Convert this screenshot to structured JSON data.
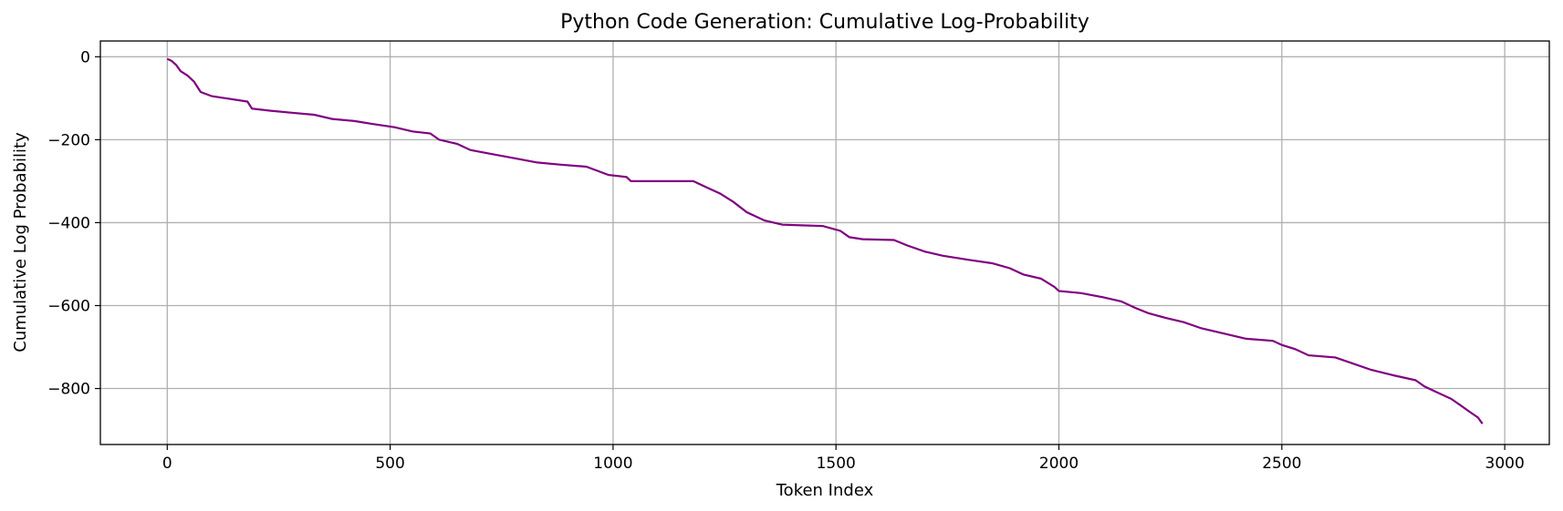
{
  "chart_data": {
    "type": "line",
    "title": "Python Code Generation: Cumulative Log-Probability",
    "xlabel": "Token Index",
    "ylabel": "Cumulative Log Probability",
    "xlim": [
      -150,
      3100
    ],
    "ylim": [
      -935,
      38
    ],
    "xticks": [
      0,
      500,
      1000,
      1500,
      2000,
      2500,
      3000
    ],
    "yticks": [
      0,
      -200,
      -400,
      -600,
      -800
    ],
    "grid": true,
    "line_color": "#800080",
    "series": [
      {
        "points": [
          [
            0,
            -5
          ],
          [
            10,
            -10
          ],
          [
            20,
            -20
          ],
          [
            30,
            -35
          ],
          [
            45,
            -45
          ],
          [
            60,
            -60
          ],
          [
            75,
            -85
          ],
          [
            100,
            -95
          ],
          [
            130,
            -100
          ],
          [
            180,
            -108
          ],
          [
            190,
            -125
          ],
          [
            230,
            -130
          ],
          [
            280,
            -135
          ],
          [
            330,
            -140
          ],
          [
            370,
            -150
          ],
          [
            420,
            -155
          ],
          [
            460,
            -162
          ],
          [
            510,
            -170
          ],
          [
            550,
            -180
          ],
          [
            590,
            -185
          ],
          [
            610,
            -200
          ],
          [
            650,
            -210
          ],
          [
            680,
            -225
          ],
          [
            730,
            -235
          ],
          [
            780,
            -245
          ],
          [
            830,
            -255
          ],
          [
            880,
            -260
          ],
          [
            940,
            -265
          ],
          [
            990,
            -285
          ],
          [
            1030,
            -290
          ],
          [
            1040,
            -300
          ],
          [
            1180,
            -300
          ],
          [
            1210,
            -315
          ],
          [
            1240,
            -330
          ],
          [
            1270,
            -350
          ],
          [
            1300,
            -375
          ],
          [
            1340,
            -395
          ],
          [
            1380,
            -405
          ],
          [
            1470,
            -408
          ],
          [
            1510,
            -420
          ],
          [
            1530,
            -435
          ],
          [
            1560,
            -440
          ],
          [
            1630,
            -442
          ],
          [
            1660,
            -455
          ],
          [
            1700,
            -470
          ],
          [
            1740,
            -480
          ],
          [
            1800,
            -490
          ],
          [
            1850,
            -498
          ],
          [
            1890,
            -510
          ],
          [
            1920,
            -525
          ],
          [
            1960,
            -535
          ],
          [
            1990,
            -555
          ],
          [
            2000,
            -565
          ],
          [
            2050,
            -570
          ],
          [
            2100,
            -580
          ],
          [
            2140,
            -590
          ],
          [
            2170,
            -605
          ],
          [
            2200,
            -618
          ],
          [
            2240,
            -630
          ],
          [
            2280,
            -640
          ],
          [
            2320,
            -655
          ],
          [
            2380,
            -670
          ],
          [
            2420,
            -680
          ],
          [
            2480,
            -685
          ],
          [
            2500,
            -695
          ],
          [
            2530,
            -705
          ],
          [
            2560,
            -720
          ],
          [
            2620,
            -725
          ],
          [
            2660,
            -740
          ],
          [
            2700,
            -755
          ],
          [
            2750,
            -768
          ],
          [
            2800,
            -780
          ],
          [
            2820,
            -795
          ],
          [
            2850,
            -810
          ],
          [
            2880,
            -825
          ],
          [
            2900,
            -840
          ],
          [
            2920,
            -855
          ],
          [
            2940,
            -870
          ],
          [
            2950,
            -885
          ]
        ]
      }
    ]
  }
}
